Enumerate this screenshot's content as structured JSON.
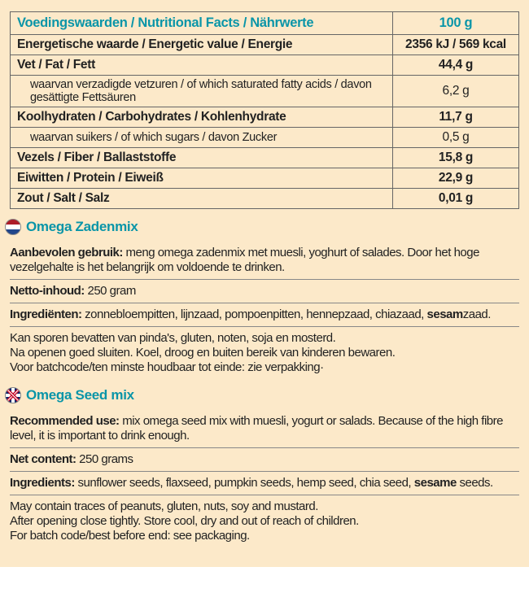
{
  "nutritional_table": {
    "header_label": "Voedingswaarden / Nutritional Facts / Nährwerte",
    "header_amount": "100 g",
    "rows": [
      {
        "label": "Energetische waarde / Energetic value / Energie",
        "value": "2356 kJ / 569 kcal",
        "bold": true
      },
      {
        "label": "Vet / Fat / Fett",
        "value": "44,4  g",
        "bold": true
      },
      {
        "label": "waarvan verzadigde vetzuren / of which saturated fatty acids / davon gesättigte Fettsäuren",
        "value": "6,2  g",
        "sub": true
      },
      {
        "label": "Koolhydraten / Carbohydrates / Kohlenhydrate",
        "value": "11,7  g",
        "bold": true
      },
      {
        "label": "waarvan suikers / of which sugars / davon Zucker",
        "value": "0,5  g",
        "sub": true
      },
      {
        "label": "Vezels / Fiber / Ballaststoffe",
        "value": "15,8  g",
        "bold": true
      },
      {
        "label": "Eiwitten / Protein / Eiweiß",
        "value": "22,9  g",
        "bold": true
      },
      {
        "label": "Zout / Salt / Salz",
        "value": "0,01  g",
        "bold": true
      }
    ]
  },
  "dutch": {
    "title": "Omega Zadenmix",
    "use_lead": "Aanbevolen gebruik:",
    "use_text": " meng omega zadenmix met muesli, yoghurt of salades. Door het hoge vezelgehalte is het belangrijk om voldoende te drinken.",
    "net_lead": "Netto-inhoud:",
    "net_text": " 250 gram",
    "ing_lead": "Ingrediënten:",
    "ing_text_a": " zonnebloempitten, lijnzaad, pompoenpitten, hennepzaad, chiazaad, ",
    "ing_bold": "sesam",
    "ing_text_b": "zaad.",
    "notes": "Kan sporen bevatten van pinda's, gluten, noten, soja en mosterd.\nNa openen goed sluiten. Koel, droog en buiten bereik van kinderen bewaren.\nVoor batchcode/ten minste houdbaar tot einde: zie verpakking·"
  },
  "english": {
    "title": "Omega Seed mix",
    "use_lead": "Recommended use:",
    "use_text": " mix omega seed mix with muesli, yogurt or salads. Because of the high fibre level, it is important to drink enough.",
    "net_lead": "Net content:",
    "net_text": " 250 grams",
    "ing_lead": "Ingredients:",
    "ing_text_a": " sunflower seeds, flaxseed, pumpkin seeds, hemp seed, chia seed, ",
    "ing_bold": "sesame",
    "ing_text_b": " seeds.",
    "notes": "May contain traces of peanuts, gluten, nuts, soy and mustard.\nAfter opening close tightly. Store cool, dry and out of reach of children.\nFor batch code/best before end: see packaging."
  },
  "colors": {
    "background": "#fce9c9",
    "accent": "#0a95a8",
    "text": "#222222",
    "border": "#666666"
  }
}
